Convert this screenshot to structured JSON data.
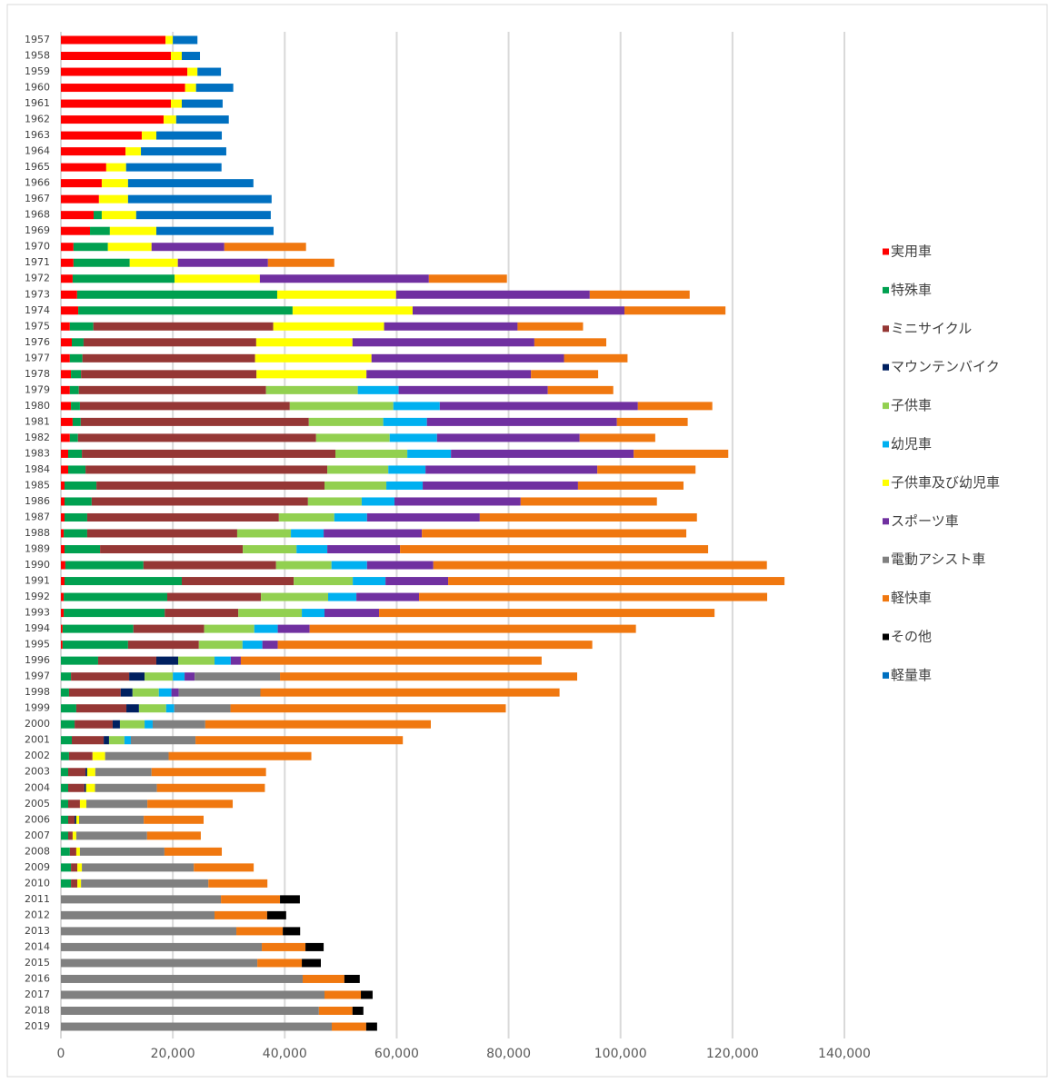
{
  "chart_data": {
    "type": "stacked-barh",
    "categories": [
      "1957",
      "1958",
      "1959",
      "1960",
      "1961",
      "1962",
      "1963",
      "1964",
      "1965",
      "1966",
      "1967",
      "1968",
      "1969",
      "1970",
      "1971",
      "1972",
      "1973",
      "1974",
      "1975",
      "1976",
      "1977",
      "1978",
      "1979",
      "1980",
      "1981",
      "1982",
      "1983",
      "1984",
      "1985",
      "1986",
      "1987",
      "1988",
      "1989",
      "1990",
      "1991",
      "1992",
      "1993",
      "1994",
      "1995",
      "1996",
      "1997",
      "1998",
      "1999",
      "2000",
      "2001",
      "2002",
      "2003",
      "2004",
      "2005",
      "2006",
      "2007",
      "2008",
      "2009",
      "2010",
      "2011",
      "2012",
      "2013",
      "2014",
      "2015",
      "2016",
      "2017",
      "2018",
      "2019"
    ],
    "series": [
      {
        "name": "実用車",
        "color": "#ff0000",
        "values": [
          18700,
          19650,
          22600,
          22200,
          19650,
          18350,
          14450,
          11550,
          8100,
          7300,
          6800,
          5850,
          5200,
          2250,
          2250,
          2100,
          2900,
          3100,
          1600,
          1950,
          1600,
          1800,
          1600,
          1800,
          2100,
          1600,
          1300,
          1300,
          650,
          650,
          650,
          500,
          650,
          800,
          650,
          500,
          500,
          300,
          300,
          null,
          null,
          null,
          null,
          null,
          null,
          null,
          null,
          null,
          null,
          null,
          null,
          null,
          null,
          null,
          null,
          null,
          null,
          null,
          null,
          null,
          null,
          null,
          null
        ]
      },
      {
        "name": "特殊車",
        "color": "#00a050",
        "values": [
          null,
          null,
          null,
          null,
          null,
          null,
          null,
          null,
          null,
          null,
          null,
          1450,
          3550,
          6150,
          10050,
          18200,
          35750,
          38300,
          4200,
          2100,
          2250,
          1800,
          1600,
          1600,
          1450,
          1450,
          2450,
          3100,
          5700,
          4850,
          4050,
          4200,
          6350,
          13950,
          20950,
          18500,
          18050,
          12650,
          11700,
          6650,
          1800,
          1450,
          2750,
          2450,
          1950,
          1450,
          1300,
          1300,
          1300,
          1300,
          1300,
          1600,
          1800,
          1800,
          null,
          null,
          null,
          null,
          null,
          null,
          null,
          null,
          null
        ]
      },
      {
        "name": "ミニサイクル",
        "color": "#953735",
        "values": [
          null,
          null,
          null,
          null,
          null,
          null,
          null,
          null,
          null,
          null,
          null,
          null,
          null,
          null,
          null,
          null,
          null,
          null,
          32150,
          30850,
          30850,
          31350,
          33450,
          37500,
          40750,
          42550,
          45300,
          43200,
          40750,
          38650,
          34250,
          26800,
          25500,
          23700,
          20000,
          16750,
          13150,
          12650,
          12650,
          10400,
          10400,
          9250,
          8950,
          6800,
          5700,
          4200,
          3100,
          2900,
          2100,
          1150,
          800,
          1150,
          1150,
          1150,
          null,
          null,
          null,
          null,
          null,
          null,
          null,
          null,
          null
        ]
      },
      {
        "name": "マウンテンバイク",
        "color": "#002060",
        "values": [
          null,
          null,
          null,
          null,
          null,
          null,
          null,
          null,
          null,
          null,
          null,
          null,
          null,
          null,
          null,
          null,
          null,
          null,
          null,
          null,
          null,
          null,
          null,
          null,
          null,
          null,
          null,
          null,
          null,
          null,
          null,
          null,
          null,
          null,
          null,
          null,
          null,
          null,
          null,
          3900,
          2750,
          2100,
          2250,
          1300,
          950,
          null,
          300,
          300,
          null,
          300,
          null,
          null,
          null,
          null,
          null,
          null,
          null,
          null,
          null,
          null,
          null,
          null,
          null
        ]
      },
      {
        "name": "子供車",
        "color": "#92d050",
        "values": [
          null,
          null,
          null,
          null,
          null,
          null,
          null,
          null,
          null,
          null,
          null,
          null,
          null,
          null,
          null,
          null,
          null,
          null,
          null,
          null,
          null,
          null,
          16400,
          18500,
          13300,
          13150,
          12850,
          10900,
          11050,
          9600,
          9900,
          9600,
          9600,
          9900,
          10550,
          12000,
          11350,
          8950,
          7800,
          6500,
          5050,
          4700,
          4850,
          4400,
          2750,
          null,
          null,
          null,
          null,
          null,
          null,
          null,
          null,
          null,
          null,
          null,
          null,
          null,
          null,
          null,
          null,
          null,
          null
        ]
      },
      {
        "name": "幼児車",
        "color": "#00b0f0",
        "values": [
          null,
          null,
          null,
          null,
          null,
          null,
          null,
          null,
          null,
          null,
          null,
          null,
          null,
          null,
          null,
          null,
          null,
          null,
          null,
          null,
          null,
          null,
          7300,
          8300,
          7800,
          8450,
          7800,
          6650,
          6500,
          5850,
          5850,
          5850,
          5500,
          6350,
          5850,
          5050,
          4050,
          4200,
          3550,
          2900,
          2100,
          2250,
          1450,
          1450,
          1150,
          null,
          null,
          null,
          null,
          null,
          null,
          null,
          null,
          null,
          null,
          null,
          null,
          null,
          null,
          null,
          null,
          null,
          null
        ]
      },
      {
        "name": "子供車及び幼児車",
        "color": "#ffff00",
        "values": [
          1300,
          1950,
          1800,
          1950,
          1950,
          2250,
          2600,
          2750,
          3550,
          4700,
          5200,
          6150,
          8300,
          7800,
          8600,
          15250,
          21250,
          21450,
          19800,
          17200,
          20800,
          19650,
          null,
          null,
          null,
          null,
          null,
          null,
          null,
          null,
          null,
          null,
          null,
          null,
          null,
          null,
          null,
          null,
          null,
          null,
          null,
          null,
          null,
          null,
          null,
          2250,
          1450,
          1600,
          1150,
          500,
          650,
          650,
          800,
          650,
          null,
          null,
          null,
          null,
          null,
          null,
          null,
          null,
          null
        ]
      },
      {
        "name": "スポーツ車",
        "color": "#7030a0",
        "values": [
          null,
          null,
          null,
          null,
          null,
          null,
          null,
          null,
          null,
          null,
          null,
          null,
          null,
          13000,
          16100,
          30200,
          34600,
          37850,
          23850,
          32500,
          34400,
          29400,
          26650,
          35400,
          33950,
          25500,
          32650,
          30700,
          27750,
          22550,
          20150,
          17550,
          13000,
          11850,
          11200,
          11200,
          9750,
          5700,
          2750,
          1800,
          1800,
          1300,
          null,
          null,
          null,
          null,
          null,
          null,
          null,
          null,
          null,
          null,
          null,
          null,
          null,
          null,
          null,
          null,
          null,
          null,
          null,
          null,
          null
        ]
      },
      {
        "name": "電動アシスト車",
        "color": "#808080",
        "values": [
          null,
          null,
          null,
          null,
          null,
          null,
          null,
          null,
          null,
          null,
          null,
          null,
          null,
          null,
          null,
          null,
          null,
          null,
          null,
          null,
          null,
          null,
          null,
          null,
          null,
          null,
          null,
          null,
          null,
          null,
          null,
          null,
          null,
          null,
          null,
          null,
          null,
          null,
          null,
          null,
          15250,
          14600,
          10050,
          9400,
          11550,
          11350,
          10050,
          11050,
          10900,
          11550,
          12650,
          15100,
          20000,
          22750,
          28600,
          27450,
          31350,
          35900,
          35100,
          43200,
          47100,
          46100,
          48400
        ]
      },
      {
        "name": "軽快車",
        "color": "#f07810",
        "values": [
          null,
          null,
          null,
          null,
          null,
          null,
          null,
          null,
          null,
          null,
          null,
          null,
          null,
          14600,
          11850,
          13950,
          17850,
          18050,
          11700,
          12850,
          11350,
          12000,
          11700,
          13300,
          12650,
          13500,
          16900,
          17550,
          18850,
          24350,
          38800,
          47250,
          55050,
          59600,
          60100,
          62200,
          59950,
          58300,
          56200,
          53750,
          53100,
          53450,
          49200,
          40300,
          37050,
          25500,
          20450,
          19300,
          15250,
          10700,
          9600,
          10250,
          10700,
          10550,
          10550,
          9400,
          8300,
          7800,
          7950,
          7450,
          6500,
          6000,
          6150
        ]
      },
      {
        "name": "その他",
        "color": "#000000",
        "values": [
          null,
          null,
          null,
          null,
          null,
          null,
          null,
          null,
          null,
          null,
          null,
          null,
          null,
          null,
          null,
          null,
          null,
          null,
          null,
          null,
          null,
          null,
          null,
          null,
          null,
          null,
          null,
          null,
          null,
          null,
          null,
          null,
          null,
          null,
          null,
          null,
          null,
          null,
          null,
          null,
          null,
          null,
          null,
          null,
          null,
          null,
          null,
          null,
          null,
          null,
          null,
          null,
          null,
          null,
          3550,
          3400,
          3100,
          3250,
          3400,
          2750,
          2100,
          1950,
          1950
        ]
      },
      {
        "name": "軽量車",
        "color": "#0070c0",
        "values": [
          4400,
          3250,
          4200,
          6650,
          7300,
          9400,
          11700,
          15250,
          17050,
          22400,
          25650,
          24050,
          20950,
          null,
          null,
          null,
          null,
          null,
          null,
          null,
          null,
          null,
          null,
          null,
          null,
          null,
          null,
          null,
          null,
          null,
          null,
          null,
          null,
          null,
          null,
          null,
          null,
          null,
          null,
          null,
          null,
          null,
          null,
          null,
          null,
          null,
          null,
          null,
          null,
          null,
          null,
          null,
          null,
          null,
          null,
          null,
          null,
          null,
          null,
          null,
          null,
          null,
          null
        ]
      }
    ],
    "xlim": [
      0,
      140000
    ],
    "xticks": [
      0,
      {
        "value": 20000,
        "label": "20,000"
      },
      {
        "value": 40000,
        "label": "40,000"
      },
      {
        "value": 60000,
        "label": "60,000"
      },
      {
        "value": 80000,
        "label": "80,000"
      },
      {
        "value": 100000,
        "label": "100,000"
      },
      {
        "value": 120000,
        "label": "120,000"
      },
      {
        "value": 140000,
        "label": "140,000"
      }
    ],
    "grid": true,
    "legend": "right"
  }
}
